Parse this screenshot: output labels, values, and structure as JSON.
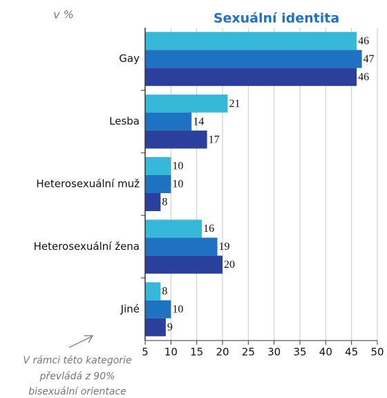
{
  "chart_data": {
    "type": "bar",
    "orientation": "horizontal",
    "title": "Sexuální identita",
    "unit_label": "v %",
    "annotation": [
      "V rámci této kategorie",
      "převládá z 90%",
      "bisexuální orientace"
    ],
    "categories": [
      "Gay",
      "Lesba",
      "Heterosexuální muž",
      "Heterosexuální žena",
      "Jiné"
    ],
    "series": [
      {
        "color": "#36b9d8",
        "values": [
          46,
          21,
          10,
          16,
          8
        ]
      },
      {
        "color": "#1f72c2",
        "values": [
          47,
          14,
          10,
          19,
          10
        ]
      },
      {
        "color": "#2b3f9c",
        "values": [
          46,
          17,
          8,
          20,
          9
        ]
      }
    ],
    "xlim": [
      5,
      50
    ],
    "xticks": [
      5,
      10,
      15,
      20,
      25,
      30,
      35,
      40,
      45,
      50
    ],
    "grid": true
  }
}
